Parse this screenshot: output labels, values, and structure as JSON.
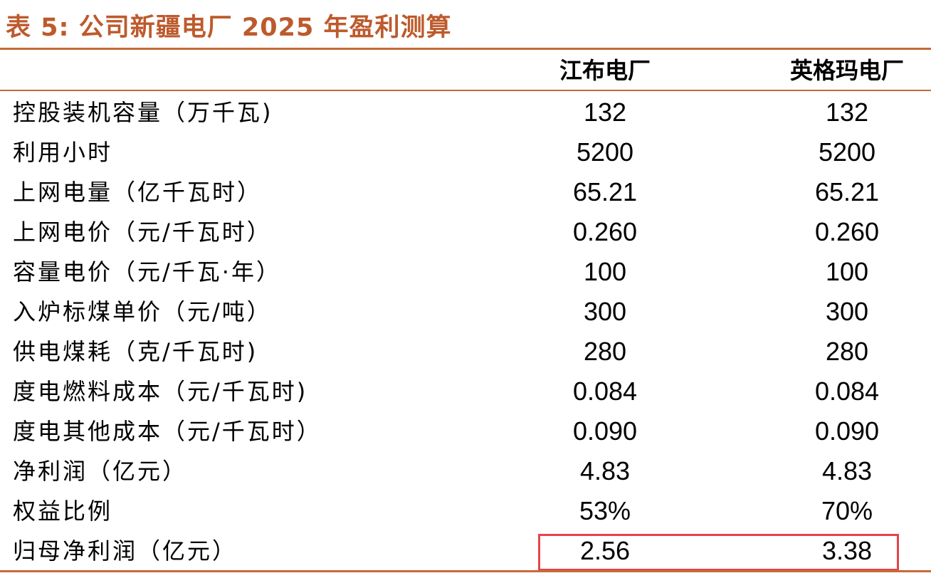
{
  "title": "表 5:  公司新疆电厂 2025 年盈利测算",
  "columns": [
    "江布电厂",
    "英格玛电厂"
  ],
  "rows": [
    {
      "label": "控股装机容量（万千瓦)",
      "values": [
        "132",
        "132"
      ]
    },
    {
      "label": "利用小时",
      "values": [
        "5200",
        "5200"
      ]
    },
    {
      "label": "上网电量（亿千瓦时）",
      "values": [
        "65.21",
        "65.21"
      ]
    },
    {
      "label": "上网电价（元/千瓦时）",
      "values": [
        "0.260",
        "0.260"
      ]
    },
    {
      "label": "容量电价（元/千瓦·年）",
      "values": [
        "100",
        "100"
      ]
    },
    {
      "label": "入炉标煤单价（元/吨）",
      "values": [
        "300",
        "300"
      ]
    },
    {
      "label": "供电煤耗（克/千瓦时)",
      "values": [
        "280",
        "280"
      ]
    },
    {
      "label": "度电燃料成本（元/千瓦时)",
      "values": [
        "0.084",
        "0.084"
      ]
    },
    {
      "label": "度电其他成本（元/千瓦时）",
      "values": [
        "0.090",
        "0.090"
      ]
    },
    {
      "label": "净利润（亿元）",
      "values": [
        "4.83",
        "4.83"
      ]
    },
    {
      "label": "权益比例",
      "values": [
        "53%",
        "70%"
      ]
    },
    {
      "label": "归母净利润（亿元）",
      "values": [
        "2.56",
        "3.38"
      ]
    }
  ],
  "colors": {
    "title": "#bd5a2c",
    "rule": "#c66a37",
    "highlight": "#e8424d"
  }
}
